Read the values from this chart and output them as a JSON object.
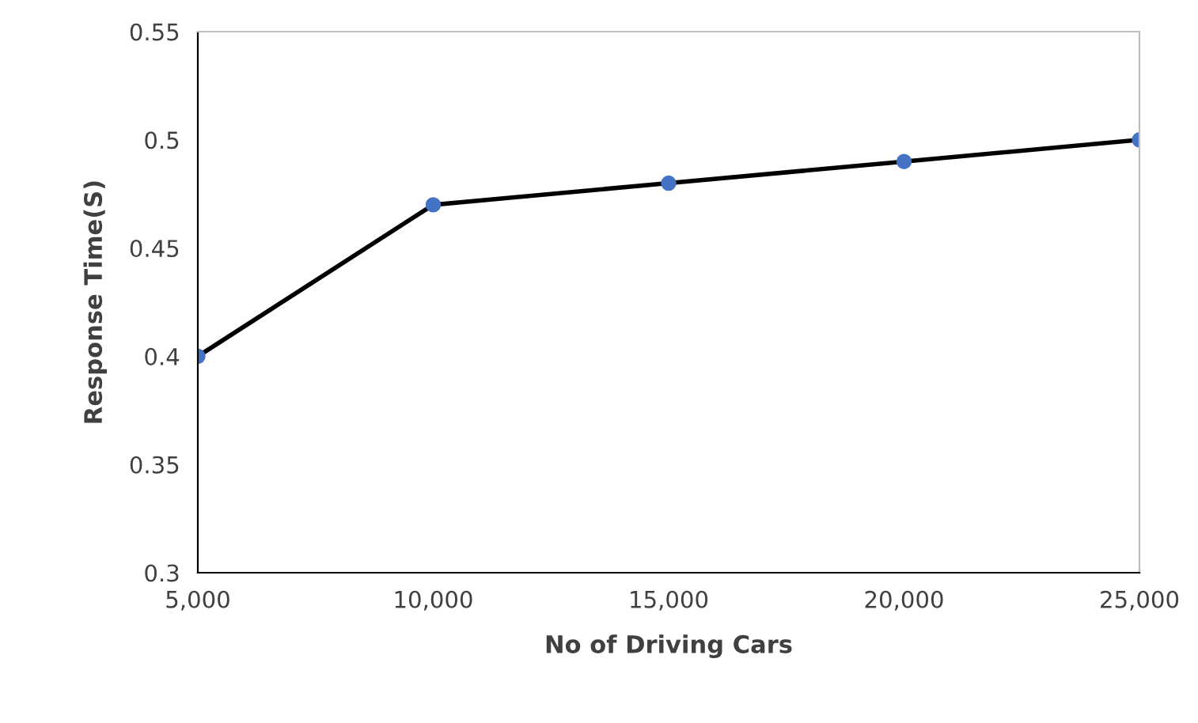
{
  "chart_data": {
    "type": "line",
    "xlabel": "No of Driving Cars",
    "ylabel": "Response Time(S)",
    "x": [
      5000,
      10000,
      15000,
      20000,
      25000
    ],
    "series": [
      {
        "color": "#4472c4",
        "values": [
          0.4,
          0.47,
          0.48,
          0.49,
          0.5
        ]
      }
    ],
    "xlim": [
      5000,
      25000
    ],
    "xticks": [
      {
        "value": 5000,
        "label": "5,000"
      },
      {
        "value": 10000,
        "label": "10,000"
      },
      {
        "value": 15000,
        "label": "15,000"
      },
      {
        "value": 20000,
        "label": "20,000"
      },
      {
        "value": 25000,
        "label": "25,000"
      }
    ],
    "ylim": [
      0.3,
      0.55
    ],
    "yticks": [
      0.3,
      0.35,
      0.4,
      0.45,
      0.5,
      0.55
    ],
    "grid": false,
    "legend": false,
    "marker": "circle",
    "line_style": "solid"
  }
}
